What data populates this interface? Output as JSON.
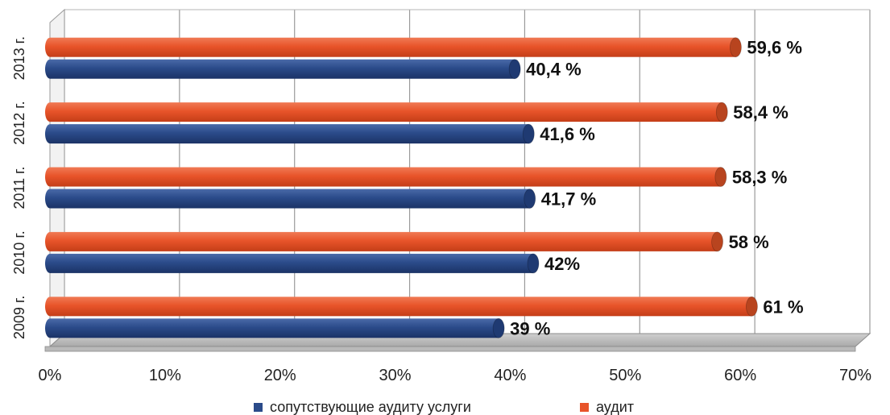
{
  "chart_data": {
    "type": "bar",
    "orientation": "horizontal",
    "categories": [
      "2013 г.",
      "2012 г.",
      "2011 г.",
      "2010 г.",
      "2009 г."
    ],
    "series": [
      {
        "name": "аудит",
        "color": "#e8542a",
        "values": [
          59.6,
          58.4,
          58.3,
          58,
          61
        ],
        "labels": [
          "59,6 %",
          "58,4 %",
          "58,3 %",
          "58 %",
          "61 %"
        ]
      },
      {
        "name": "сопутствующие аудиту услуги",
        "color": "#2b4b8a",
        "values": [
          40.4,
          41.6,
          41.7,
          42,
          39
        ],
        "labels": [
          "40,4 %",
          "41,6 %",
          "41,7 %",
          "42%",
          "39 %"
        ]
      }
    ],
    "xlim": [
      0,
      70
    ],
    "xticks": [
      "0%",
      "10%",
      "20%",
      "30%",
      "40%",
      "50%",
      "60%",
      "70%"
    ],
    "grid": true,
    "legend_position": "bottom",
    "legend_order": [
      "сопутствующие аудиту услуги",
      "аудит"
    ]
  }
}
